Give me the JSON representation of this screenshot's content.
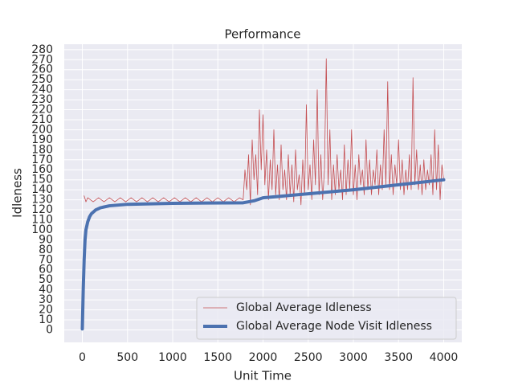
{
  "chart_data": {
    "type": "line",
    "title": "Performance",
    "x_label": "Unit Time",
    "y_label": "Idleness",
    "xlim": [
      -200,
      4200
    ],
    "xticks": [
      0,
      500,
      1000,
      1500,
      2000,
      2500,
      3000,
      3500,
      4000
    ],
    "ylim": [
      -12.5,
      285.5
    ],
    "yticks": [
      0,
      10,
      20,
      30,
      40,
      50,
      60,
      70,
      80,
      90,
      100,
      110,
      120,
      130,
      140,
      150,
      160,
      170,
      180,
      190,
      200,
      210,
      220,
      230,
      240,
      250,
      260,
      270,
      280
    ],
    "grid": true,
    "legend": "lower right",
    "series": [
      {
        "name": "Global Average Idleness",
        "color": "#c44e52",
        "width": 0.8,
        "x": [
          20,
          40,
          60,
          120,
          180,
          240,
          300,
          360,
          420,
          480,
          540,
          600,
          660,
          720,
          780,
          840,
          900,
          960,
          1020,
          1080,
          1140,
          1200,
          1260,
          1320,
          1380,
          1440,
          1500,
          1560,
          1620,
          1680,
          1740,
          1780,
          1800,
          1820,
          1840,
          1860,
          1880,
          1900,
          1920,
          1940,
          1960,
          1980,
          2000,
          2020,
          2040,
          2060,
          2080,
          2100,
          2120,
          2140,
          2160,
          2180,
          2200,
          2220,
          2240,
          2260,
          2280,
          2300,
          2320,
          2340,
          2360,
          2380,
          2400,
          2420,
          2440,
          2460,
          2480,
          2500,
          2520,
          2540,
          2560,
          2580,
          2600,
          2620,
          2640,
          2660,
          2680,
          2700,
          2720,
          2740,
          2760,
          2780,
          2800,
          2820,
          2840,
          2860,
          2880,
          2900,
          2920,
          2940,
          2960,
          2980,
          3000,
          3020,
          3040,
          3060,
          3080,
          3100,
          3120,
          3140,
          3160,
          3180,
          3200,
          3220,
          3240,
          3260,
          3280,
          3300,
          3320,
          3340,
          3360,
          3380,
          3400,
          3420,
          3440,
          3460,
          3480,
          3500,
          3520,
          3540,
          3560,
          3580,
          3600,
          3620,
          3640,
          3660,
          3680,
          3700,
          3720,
          3740,
          3760,
          3780,
          3800,
          3820,
          3840,
          3860,
          3880,
          3900,
          3920,
          3940,
          3960,
          3980,
          4000
        ],
        "values": [
          134,
          128,
          132,
          128,
          132,
          128,
          132,
          128,
          132,
          128,
          132,
          128,
          132,
          128,
          132,
          128,
          132,
          128,
          132,
          128,
          132,
          128,
          132,
          128,
          132,
          128,
          132,
          128,
          132,
          128,
          132,
          130,
          160,
          140,
          175,
          125,
          190,
          150,
          175,
          135,
          220,
          160,
          215,
          145,
          180,
          130,
          170,
          140,
          200,
          135,
          165,
          130,
          185,
          140,
          160,
          130,
          175,
          135,
          165,
          128,
          180,
          140,
          155,
          125,
          170,
          135,
          225,
          140,
          165,
          130,
          190,
          145,
          240,
          135,
          175,
          130,
          160,
          271,
          145,
          200,
          130,
          165,
          135,
          175,
          140,
          160,
          130,
          185,
          135,
          170,
          140,
          200,
          135,
          165,
          130,
          175,
          145,
          160,
          135,
          190,
          140,
          170,
          135,
          160,
          145,
          180,
          135,
          165,
          140,
          200,
          145,
          248,
          140,
          175,
          135,
          165,
          145,
          190,
          140,
          170,
          135,
          160,
          140,
          175,
          140,
          252,
          145,
          180,
          140,
          165,
          135,
          170,
          140,
          160,
          145,
          175,
          135,
          200,
          140,
          185,
          130,
          165,
          150
        ]
      },
      {
        "name": "Global Average Node Visit Idleness",
        "color": "#4c72b0",
        "width": 4,
        "x": [
          0,
          10,
          20,
          30,
          40,
          60,
          80,
          100,
          150,
          200,
          300,
          500,
          1000,
          1780,
          1900,
          2000,
          2500,
          3000,
          3500,
          4000
        ],
        "values": [
          1,
          40,
          70,
          90,
          100,
          108,
          113,
          116,
          120,
          122,
          124,
          125.5,
          126.5,
          127,
          129,
          132,
          136,
          140,
          145,
          150
        ]
      }
    ]
  }
}
